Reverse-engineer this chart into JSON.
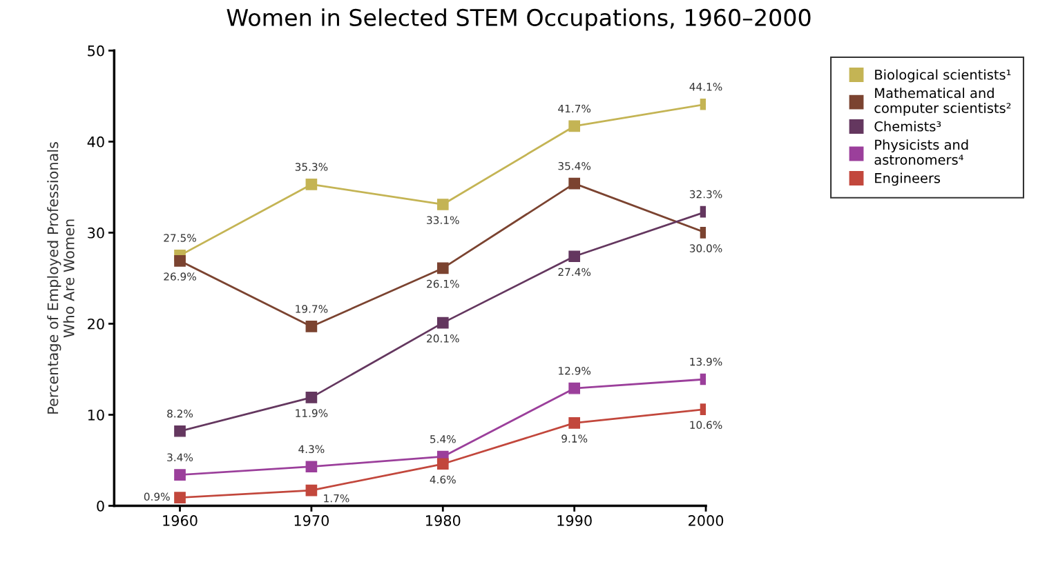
{
  "chart_data": {
    "type": "line",
    "title": "Women in Selected STEM Occupations, 1960–2000",
    "ylabel": "Percentage of Employed Professionals\nWho Are Women",
    "categories": [
      "1960",
      "1970",
      "1980",
      "1990",
      "2000"
    ],
    "ylim": [
      0,
      50
    ],
    "yticks": [
      0,
      10,
      20,
      30,
      40,
      50
    ],
    "grid": false,
    "legend": "top right",
    "marker": "square",
    "line_style": "solid",
    "series": [
      {
        "name": "Biological scientists¹",
        "color": "#c4b454",
        "values": [
          27.5,
          35.3,
          33.1,
          41.7,
          44.1
        ],
        "value_labels": [
          "27.5%",
          "35.3%",
          "33.1%",
          "41.7%",
          "44.1%"
        ]
      },
      {
        "name": "Mathematical and\ncomputer scientists²",
        "color": "#7b4330",
        "values": [
          26.9,
          19.7,
          26.1,
          35.4,
          30.0
        ],
        "value_labels": [
          "26.9%",
          "19.7%",
          "26.1%",
          "35.4%",
          "30.0%"
        ]
      },
      {
        "name": "Chemists³",
        "color": "#64375f",
        "values": [
          8.2,
          11.9,
          20.1,
          27.4,
          32.3
        ],
        "value_labels": [
          "8.2%",
          "11.9%",
          "20.1%",
          "27.4%",
          "32.3%"
        ]
      },
      {
        "name": "Physicists and\nastronomers⁴",
        "color": "#9b3f9b",
        "values": [
          3.4,
          4.3,
          5.4,
          12.9,
          13.9
        ],
        "value_labels": [
          "3.4%",
          "4.3%",
          "5.4%",
          "12.9%",
          "13.9%"
        ]
      },
      {
        "name": "Engineers",
        "color": "#c2473c",
        "values": [
          0.9,
          1.7,
          4.6,
          9.1,
          10.6
        ],
        "value_labels": [
          "0.9%",
          "1.7%",
          "4.6%",
          "9.1%",
          "10.6%"
        ]
      }
    ]
  }
}
